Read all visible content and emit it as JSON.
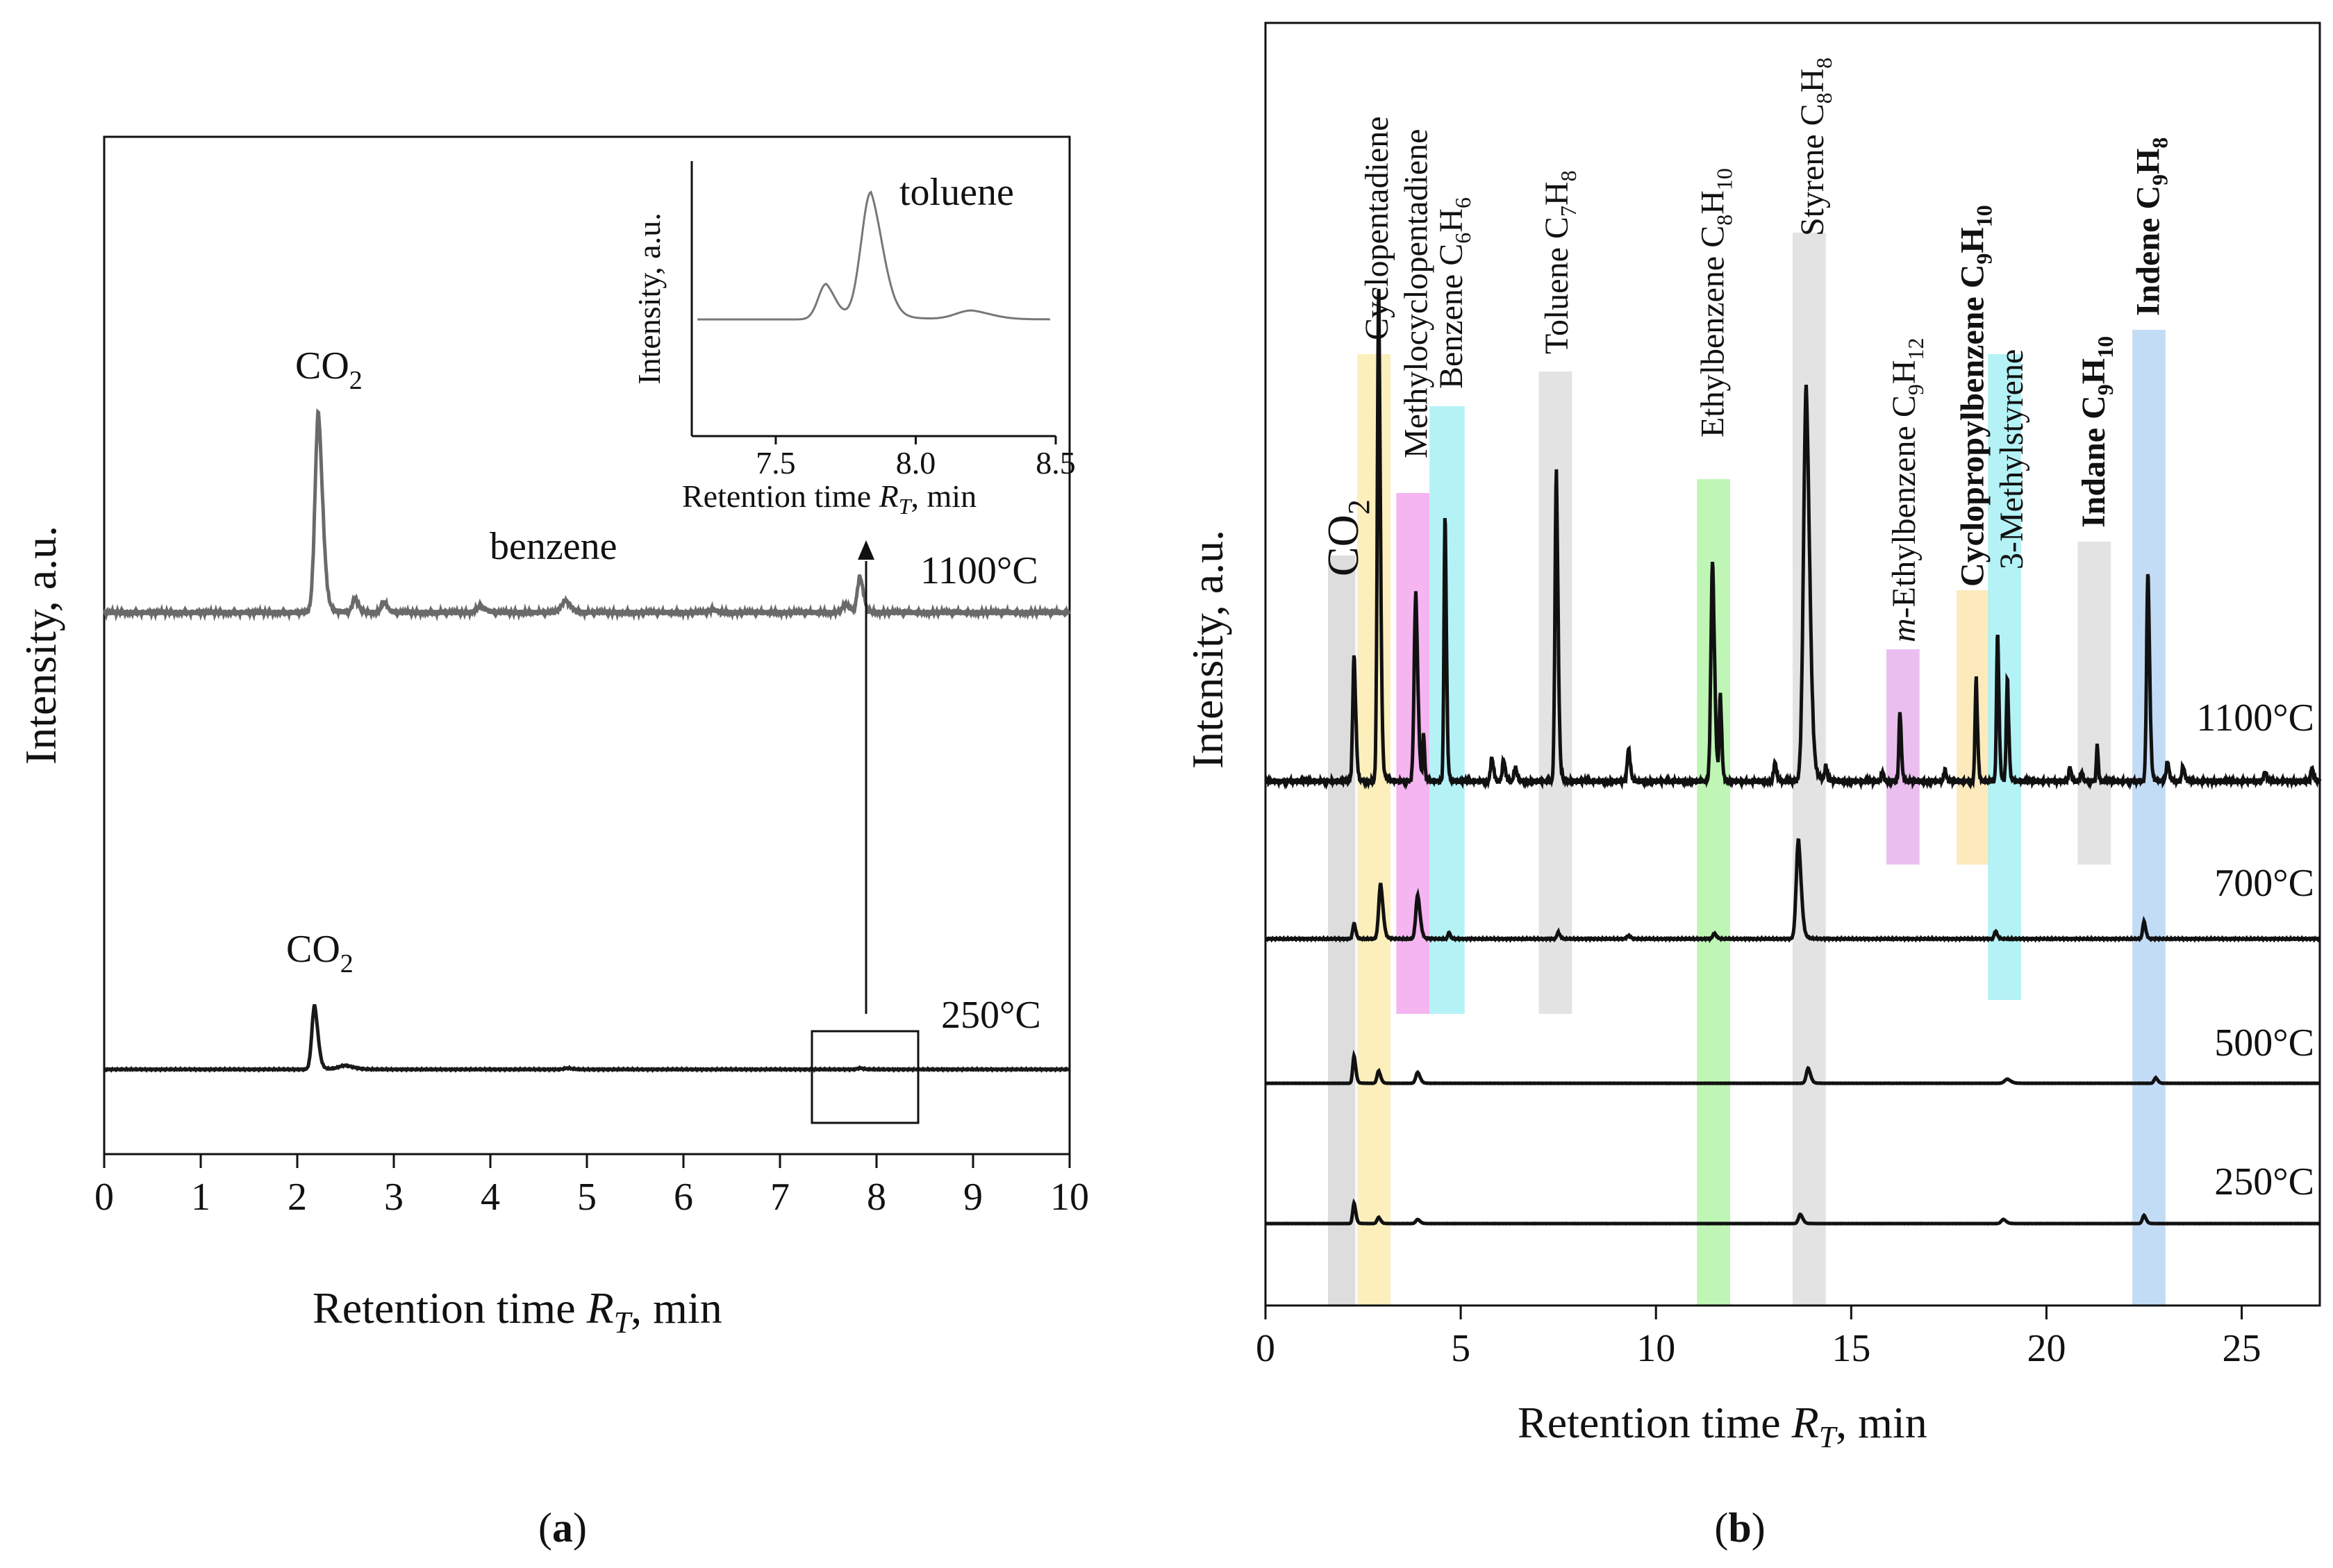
{
  "chart_data": [
    {
      "panel": "a",
      "type": "line",
      "caption": "(a)",
      "xlabel": "Retention time RT, min",
      "xlabel_main": "Retention time ",
      "xlabel_var": "R",
      "xlabel_sub": "T",
      "xlabel_unit": ", min",
      "ylabel": "Intensity, a.u.",
      "xlim": [
        0,
        10
      ],
      "xticks": [
        "0",
        "1",
        "2",
        "3",
        "4",
        "5",
        "6",
        "7",
        "8",
        "9",
        "10"
      ],
      "series": [
        {
          "name": "1100°C",
          "color": "#6a6a6a",
          "peaks": [
            [
              2.22,
              1.0,
              0.05
            ],
            [
              2.6,
              0.07,
              0.04
            ],
            [
              2.9,
              0.05,
              0.04
            ],
            [
              3.9,
              0.03,
              0.06
            ],
            [
              4.78,
              0.06,
              0.06
            ],
            [
              6.3,
              0.015,
              0.05
            ],
            [
              7.68,
              0.04,
              0.05
            ],
            [
              7.83,
              0.18,
              0.04
            ]
          ]
        },
        {
          "name": "250°C",
          "color": "#1a1a1a",
          "peaks": [
            [
              2.18,
              1.0,
              0.04
            ],
            [
              2.5,
              0.06,
              0.1
            ],
            [
              4.8,
              0.02,
              0.05
            ],
            [
              7.83,
              0.02,
              0.04
            ]
          ]
        }
      ],
      "annotations": {
        "co2_top": "CO2",
        "co2_bottom": "CO2",
        "benzene": "benzene",
        "label_1100": "1100°C",
        "label_250": "250°C"
      },
      "inset": {
        "title": "toluene",
        "xlabel": "Retention time RT, min",
        "ylabel": "Intensity, a.u.",
        "xlim": [
          7.2,
          8.5
        ],
        "xticks": [
          "7.5",
          "8.0",
          "8.5"
        ],
        "peaks": [
          [
            7.68,
            0.28,
            0.04
          ],
          [
            7.84,
            1.0,
            0.05
          ],
          [
            8.2,
            0.07,
            0.08
          ]
        ]
      }
    },
    {
      "panel": "b",
      "type": "line",
      "caption": "(b)",
      "xlabel": "Retention time RT, min",
      "ylabel": "Intensity, a.u.",
      "xlim": [
        0,
        27
      ],
      "xticks": [
        "0",
        "5",
        "10",
        "15",
        "20",
        "25"
      ],
      "series": [
        {
          "name": "1100°C",
          "color": "#111111",
          "scale": 1.0
        },
        {
          "name": "700°C",
          "color": "#111111",
          "scale": 0.28
        },
        {
          "name": "500°C",
          "color": "#111111",
          "scale": 0.06
        },
        {
          "name": "250°C",
          "color": "#111111",
          "scale": 0.04
        }
      ],
      "peaks_1100": [
        [
          2.27,
          0.27,
          0.05
        ],
        [
          2.9,
          1.05,
          0.05
        ],
        [
          3.85,
          0.4,
          0.06
        ],
        [
          4.05,
          0.1,
          0.03
        ],
        [
          4.6,
          0.57,
          0.04
        ],
        [
          5.8,
          0.05,
          0.05
        ],
        [
          6.1,
          0.045,
          0.05
        ],
        [
          6.4,
          0.03,
          0.05
        ],
        [
          7.45,
          0.66,
          0.05
        ],
        [
          9.3,
          0.07,
          0.05
        ],
        [
          11.45,
          0.47,
          0.06
        ],
        [
          11.65,
          0.18,
          0.04
        ],
        [
          13.05,
          0.04,
          0.05
        ],
        [
          13.85,
          0.84,
          0.1
        ],
        [
          14.35,
          0.03,
          0.04
        ],
        [
          15.8,
          0.02,
          0.04
        ],
        [
          16.25,
          0.15,
          0.04
        ],
        [
          17.4,
          0.025,
          0.04
        ],
        [
          18.2,
          0.22,
          0.04
        ],
        [
          18.75,
          0.32,
          0.04
        ],
        [
          19.0,
          0.22,
          0.04
        ],
        [
          20.6,
          0.03,
          0.04
        ],
        [
          20.9,
          0.02,
          0.04
        ],
        [
          21.3,
          0.08,
          0.03
        ],
        [
          22.6,
          0.45,
          0.05
        ],
        [
          23.1,
          0.04,
          0.05
        ],
        [
          23.5,
          0.03,
          0.05
        ],
        [
          25.6,
          0.02,
          0.05
        ],
        [
          26.8,
          0.03,
          0.04
        ]
      ],
      "peaks_700": [
        [
          2.27,
          0.14,
          0.05
        ],
        [
          2.95,
          0.5,
          0.07
        ],
        [
          3.9,
          0.4,
          0.07
        ],
        [
          4.7,
          0.06,
          0.04
        ],
        [
          7.5,
          0.06,
          0.05
        ],
        [
          9.3,
          0.03,
          0.06
        ],
        [
          11.5,
          0.05,
          0.06
        ],
        [
          13.65,
          0.9,
          0.08
        ],
        [
          18.7,
          0.07,
          0.05
        ],
        [
          22.5,
          0.16,
          0.05
        ]
      ],
      "peaks_500": [
        [
          2.27,
          1.0,
          0.05
        ],
        [
          2.9,
          0.45,
          0.06
        ],
        [
          3.9,
          0.4,
          0.07
        ],
        [
          13.9,
          0.55,
          0.07
        ],
        [
          19.0,
          0.15,
          0.1
        ],
        [
          22.8,
          0.2,
          0.06
        ]
      ],
      "peaks_250": [
        [
          2.27,
          1.0,
          0.05
        ],
        [
          2.9,
          0.3,
          0.06
        ],
        [
          3.9,
          0.2,
          0.07
        ],
        [
          13.7,
          0.45,
          0.07
        ],
        [
          18.9,
          0.2,
          0.08
        ],
        [
          22.5,
          0.4,
          0.06
        ]
      ],
      "temperature_labels": [
        "1100°C",
        "700°C",
        "500°C",
        "250°C"
      ],
      "co2_label": "CO2",
      "bands": [
        {
          "x0": 1.6,
          "x1": 2.3,
          "color": "#d7d7d7",
          "extent": "full"
        },
        {
          "x0": 2.35,
          "x1": 3.2,
          "color": "#fbecb0",
          "extent": "full"
        },
        {
          "x0": 3.35,
          "x1": 4.2,
          "color": "#f3a8ee",
          "extent": "upper"
        },
        {
          "x0": 4.2,
          "x1": 5.1,
          "color": "#a8f0f4",
          "extent": "upper"
        },
        {
          "x0": 7.0,
          "x1": 7.85,
          "color": "#dedede",
          "extent": "upper"
        },
        {
          "x0": 11.05,
          "x1": 11.9,
          "color": "#b4f4a8",
          "extent": "full"
        },
        {
          "x0": 13.5,
          "x1": 14.35,
          "color": "#dedede",
          "extent": "full"
        },
        {
          "x0": 15.9,
          "x1": 16.75,
          "color": "#e6b4ec",
          "extent": "mid"
        },
        {
          "x0": 17.7,
          "x1": 18.55,
          "color": "#fbe6b0",
          "extent": "mid"
        },
        {
          "x0": 18.5,
          "x1": 19.35,
          "color": "#a8f0f4",
          "extent": "upper"
        },
        {
          "x0": 20.8,
          "x1": 21.65,
          "color": "#dedede",
          "extent": "mid"
        },
        {
          "x0": 22.2,
          "x1": 23.05,
          "color": "#b8d6f4",
          "extent": "full"
        }
      ],
      "compounds": [
        {
          "name": "Cyclopentadiene",
          "x": 2.85
        },
        {
          "name": "Methylocyclopentadiene",
          "x": 3.85
        },
        {
          "name": "Benzene C6H6",
          "x": 4.75
        },
        {
          "name": "Toluene C7H8",
          "x": 7.45
        },
        {
          "name": "Ethylbenzene C8H10",
          "x": 11.45
        },
        {
          "name": "Styrene C8H8",
          "x": 14.0
        },
        {
          "name": "m-Ethylbenzene C9H12",
          "x": 16.35
        },
        {
          "name": "Cyclopropylbenzene C9H10",
          "x": 18.1
        },
        {
          "name": "3-Methylstyrene",
          "x": 19.1
        },
        {
          "name": "Indane C9H10",
          "x": 21.2
        },
        {
          "name": "Indene C9H8",
          "x": 22.6
        }
      ]
    }
  ]
}
